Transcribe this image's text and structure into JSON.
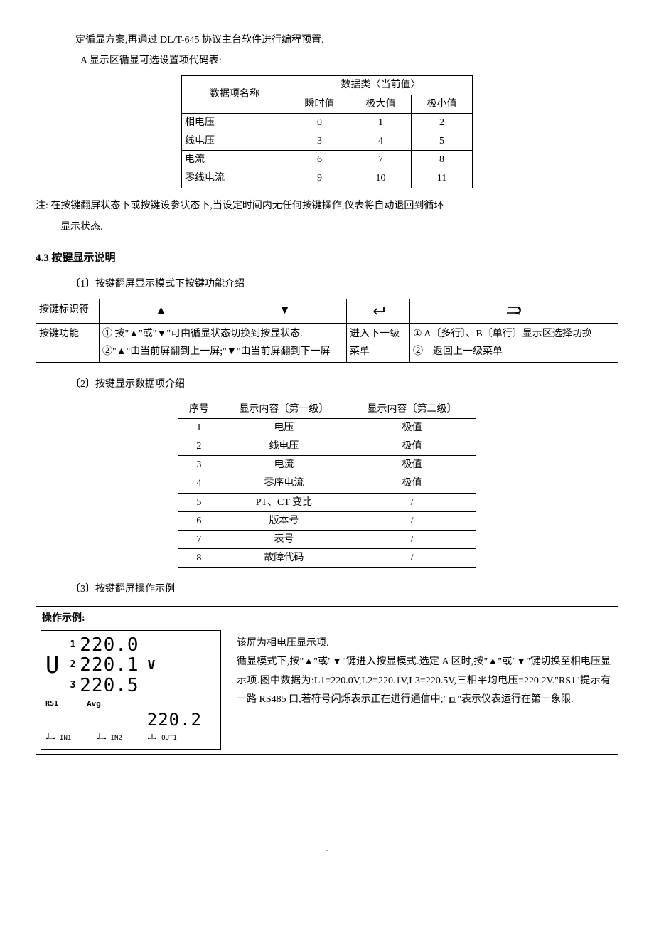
{
  "intro": {
    "line1": "定循显方案,再通过 DL/T-645 协议主台软件进行编程预置.",
    "line2": "A 显示区循显可选设置项代码表:"
  },
  "table1": {
    "head_name": "数据项名称",
    "head_cat": "数据类〈当前值〉",
    "sub1": "瞬时值",
    "sub2": "极大值",
    "sub3": "极小值",
    "rows": [
      {
        "name": "相电压",
        "c1": "0",
        "c2": "1",
        "c3": "2"
      },
      {
        "name": "线电压",
        "c1": "3",
        "c2": "4",
        "c3": "5"
      },
      {
        "name": "电流",
        "c1": "6",
        "c2": "7",
        "c3": "8"
      },
      {
        "name": "零线电流",
        "c1": "9",
        "c2": "10",
        "c3": "11"
      }
    ]
  },
  "note": {
    "prefix": "注:",
    "text1": "在按键翻屏状态下或按键设参状态下,当设定时间内无任何按键操作,仪表将自动退回到循环",
    "text2": "显示状态."
  },
  "section43": "4.3  按键显示说明",
  "sub1": "〔1〕按键翻屏显示模式下按键功能介绍",
  "table2": {
    "row_ident": "按键标识符",
    "row_func": "按键功能",
    "up": "▲",
    "down": "▼",
    "func_updown": "① 按\"▲\"或\"▼\"可由循显状态切换到按显状态.\n②\"▲\"由当前屏翻到上一屏;\"▼\"由当前屏翻到下一屏",
    "func_enter": "进入下一级菜单",
    "func_ret": "①  A〔多行〕、B〔单行〕显示区选择切换\n②　返回上一级菜单"
  },
  "sub2": "〔2〕按键显示数据项介绍",
  "table3": {
    "h1": "序号",
    "h2": "显示内容〔第一级〕",
    "h3": "显示内容〔第二级〕",
    "rows": [
      {
        "n": "1",
        "a": "电压",
        "b": "极值"
      },
      {
        "n": "2",
        "a": "线电压",
        "b": "极值"
      },
      {
        "n": "3",
        "a": "电流",
        "b": "极值"
      },
      {
        "n": "4",
        "a": "零序电流",
        "b": "极值"
      },
      {
        "n": "5",
        "a": "PT、CT 变比",
        "b": "/"
      },
      {
        "n": "6",
        "a": "版本号",
        "b": "/"
      },
      {
        "n": "7",
        "a": "表号",
        "b": "/"
      },
      {
        "n": "8",
        "a": "故障代码",
        "b": "/"
      }
    ]
  },
  "sub3": "〔3〕按键翻屏操作示例",
  "example": {
    "title": "操作示例:",
    "lcd": {
      "u": "U",
      "r1_label": "1",
      "r1_val": "220.0",
      "r2_label": "2",
      "r2_val": "220.1",
      "r3_label": "3",
      "r3_val": "220.5",
      "v": "V",
      "rs1": "RS1",
      "avg_lbl": "Avg",
      "avg_val": "220.2",
      "in1": "IN1",
      "in2": "IN2",
      "out1": "OUT1"
    },
    "desc_l1": "该屏为相电压显示项.",
    "desc_l2": "循显模式下,按\"▲\"或\"▼\"键进入按显模式.选定 A 区时,按\"▲\"或\"▼\"键切换至相电压显示项.图中数据为:L1=220.0V,L2=220.1V,L3=220.5V,三相平均电压=220.2V.\"RS1\"提示有一路 RS485 口,若符号闪烁表示正在进行通信中;\"  \"表示仪表运行在第一象限.",
    "quad_note_prefix": "信中;\"",
    "quad_note_suffix": "\"表示仪表运行在第一象限."
  },
  "colors": {
    "text": "#000000",
    "border": "#000000",
    "bg": "#ffffff"
  }
}
